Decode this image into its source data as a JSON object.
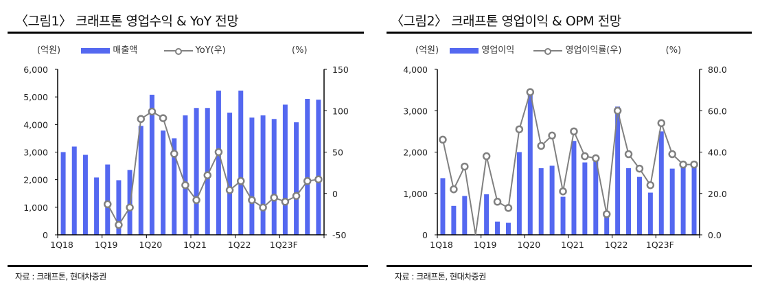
{
  "charts_text": [
    {
      "title": "〈그림1〉 크래프톤  영업수익  & YoY  전망",
      "left_unit": "(억원)",
      "right_unit": "(%)",
      "legend_bar": "매출액",
      "legend_line": "YoY(우)",
      "source": "자료 : 크래프톤, 현대차증권"
    },
    {
      "title": "〈그림2〉 크래프톤  영업이익  & OPM  전망",
      "left_unit": "(억원)",
      "right_unit": "(%)",
      "legend_bar": "영업이익",
      "legend_line": "영업이익률(우)",
      "source": "자료 : 크래프톤, 현대차증권"
    }
  ],
  "colors": {
    "bar": "#5468F0",
    "line": "#808080"
  },
  "chart_data": [
    {
      "type": "bar+line",
      "categories": [
        "1Q18",
        "2Q18",
        "3Q18",
        "4Q18",
        "1Q19",
        "2Q19",
        "3Q19",
        "4Q19",
        "1Q20",
        "2Q20",
        "3Q20",
        "4Q20",
        "1Q21",
        "2Q21",
        "3Q21",
        "4Q21",
        "1Q22",
        "2Q22",
        "3Q22",
        "4Q22",
        "1Q23F",
        "2Q23F",
        "3Q23F",
        "4Q23F"
      ],
      "x_tick_labels": [
        "1Q18",
        "1Q19",
        "1Q20",
        "1Q21",
        "1Q22",
        "1Q23F"
      ],
      "series": [
        {
          "name": "매출액",
          "axis": "left",
          "type": "bar",
          "values": [
            3000,
            3200,
            2900,
            2080,
            2550,
            1980,
            2350,
            3950,
            5080,
            3780,
            3500,
            4330,
            4600,
            4600,
            5230,
            4430,
            5230,
            4250,
            4330,
            4200,
            4720,
            4080,
            4930,
            4900
          ]
        },
        {
          "name": "YoY(우)",
          "axis": "right",
          "type": "line",
          "values": [
            null,
            null,
            null,
            null,
            -13,
            -38,
            -17,
            90,
            99,
            91,
            48,
            10,
            -8,
            22,
            50,
            4,
            15,
            -8,
            -17,
            -5,
            -10,
            -3,
            15,
            17
          ]
        }
      ],
      "ylim_left": [
        0,
        6000
      ],
      "yticks_left": [
        "0",
        "1,000",
        "2,000",
        "3,000",
        "4,000",
        "5,000",
        "6,000"
      ],
      "ylim_right": [
        -50,
        150
      ],
      "yticks_right": [
        "-50",
        "0",
        "50",
        "100",
        "150"
      ],
      "grid": false,
      "legend": "top"
    },
    {
      "type": "bar+line",
      "categories": [
        "1Q18",
        "2Q18",
        "3Q18",
        "4Q18",
        "1Q19",
        "2Q19",
        "3Q19",
        "4Q19",
        "1Q20",
        "2Q20",
        "3Q20",
        "4Q20",
        "1Q21",
        "2Q21",
        "3Q21",
        "4Q21",
        "1Q22",
        "2Q22",
        "3Q22",
        "4Q22",
        "1Q23F",
        "2Q23F",
        "3Q23F",
        "4Q23F"
      ],
      "x_tick_labels": [
        "1Q18",
        "1Q19",
        "1Q20",
        "1Q21",
        "1Q22",
        "1Q23F"
      ],
      "series": [
        {
          "name": "영업이익",
          "axis": "left",
          "type": "bar",
          "values": [
            1370,
            700,
            940,
            -50,
            980,
            320,
            290,
            2000,
            3450,
            1610,
            1670,
            920,
            2270,
            1750,
            1790,
            460,
            3100,
            1610,
            1400,
            1020,
            2500,
            1600,
            1650,
            1650
          ]
        },
        {
          "name": "영업이익률(우)",
          "axis": "right",
          "type": "line",
          "values": [
            46,
            22,
            33,
            -3,
            38,
            16,
            13,
            51,
            69,
            43,
            48,
            21,
            50,
            38,
            37,
            10,
            60,
            39,
            32,
            24,
            54,
            39,
            34,
            34
          ]
        }
      ],
      "ylim_left": [
        0,
        4000
      ],
      "yticks_left": [
        "0",
        "1,000",
        "2,000",
        "3,000",
        "4,000"
      ],
      "ylim_right": [
        0,
        80
      ],
      "yticks_right": [
        "0.0",
        "20.0",
        "40.0",
        "60.0",
        "80.0"
      ],
      "grid": false,
      "legend": "top"
    }
  ]
}
